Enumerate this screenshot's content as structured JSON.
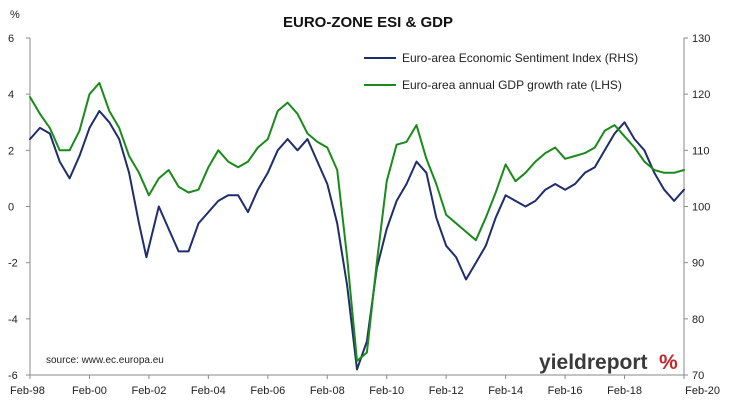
{
  "chart_data": {
    "type": "line",
    "title": "EURO-ZONE ESI & GDP",
    "left_axis_unit": "%",
    "ylim_left": [
      -6,
      6
    ],
    "ylim_right": [
      70,
      130
    ],
    "yticks_left": [
      6,
      4,
      2,
      0,
      -2,
      -4,
      -6
    ],
    "yticks_right": [
      130,
      120,
      110,
      100,
      90,
      80,
      70
    ],
    "xlim": [
      "1998-02",
      "2020-02"
    ],
    "xtick_labels": [
      "Feb-98",
      "Feb-00",
      "Feb-02",
      "Feb-04",
      "Feb-06",
      "Feb-08",
      "Feb-10",
      "Feb-12",
      "Feb-14",
      "Feb-16",
      "Feb-18",
      "Feb-20"
    ],
    "grid": false,
    "legend_position": "top-right",
    "source": "source: www.ec.europa.eu",
    "logo": {
      "text": "yieldreport",
      "symbol": "%"
    },
    "series": [
      {
        "name": "Euro-area Economic Sentiment Index (RHS)",
        "axis": "right",
        "color": "#1f2d6b",
        "points": [
          [
            "1998-02",
            112
          ],
          [
            "1998-06",
            114
          ],
          [
            "1998-10",
            113
          ],
          [
            "1999-02",
            108
          ],
          [
            "1999-06",
            105
          ],
          [
            "1999-10",
            109
          ],
          [
            "2000-02",
            114
          ],
          [
            "2000-06",
            117
          ],
          [
            "2000-10",
            115
          ],
          [
            "2001-02",
            112
          ],
          [
            "2001-06",
            106
          ],
          [
            "2001-10",
            97
          ],
          [
            "2002-01",
            91
          ],
          [
            "2002-06",
            100
          ],
          [
            "2002-10",
            96
          ],
          [
            "2003-02",
            92
          ],
          [
            "2003-06",
            92
          ],
          [
            "2003-10",
            97
          ],
          [
            "2004-02",
            99
          ],
          [
            "2004-06",
            101
          ],
          [
            "2004-10",
            102
          ],
          [
            "2005-02",
            102
          ],
          [
            "2005-06",
            99
          ],
          [
            "2005-10",
            103
          ],
          [
            "2006-02",
            106
          ],
          [
            "2006-06",
            110
          ],
          [
            "2006-10",
            112
          ],
          [
            "2007-02",
            110
          ],
          [
            "2007-06",
            112
          ],
          [
            "2007-10",
            108
          ],
          [
            "2008-02",
            104
          ],
          [
            "2008-06",
            97
          ],
          [
            "2008-10",
            86
          ],
          [
            "2009-02",
            71
          ],
          [
            "2009-06",
            76
          ],
          [
            "2009-10",
            89
          ],
          [
            "2010-02",
            96
          ],
          [
            "2010-06",
            101
          ],
          [
            "2010-10",
            104
          ],
          [
            "2011-02",
            108
          ],
          [
            "2011-06",
            106
          ],
          [
            "2011-10",
            98
          ],
          [
            "2012-02",
            93
          ],
          [
            "2012-06",
            91
          ],
          [
            "2012-10",
            87
          ],
          [
            "2013-02",
            90
          ],
          [
            "2013-06",
            93
          ],
          [
            "2013-10",
            98
          ],
          [
            "2014-02",
            102
          ],
          [
            "2014-06",
            101
          ],
          [
            "2014-10",
            100
          ],
          [
            "2015-02",
            101
          ],
          [
            "2015-06",
            103
          ],
          [
            "2015-10",
            104
          ],
          [
            "2016-02",
            103
          ],
          [
            "2016-06",
            104
          ],
          [
            "2016-10",
            106
          ],
          [
            "2017-02",
            107
          ],
          [
            "2017-06",
            110
          ],
          [
            "2017-10",
            113
          ],
          [
            "2018-02",
            115
          ],
          [
            "2018-06",
            112
          ],
          [
            "2018-10",
            110
          ],
          [
            "2019-02",
            106
          ],
          [
            "2019-06",
            103
          ],
          [
            "2019-10",
            101
          ],
          [
            "2020-02",
            103
          ]
        ]
      },
      {
        "name": "Euro-area annual GDP growth rate (LHS)",
        "axis": "left",
        "color": "#1a8a1a",
        "points": [
          [
            "1998-02",
            3.9
          ],
          [
            "1998-06",
            3.3
          ],
          [
            "1998-10",
            2.8
          ],
          [
            "1999-02",
            2.0
          ],
          [
            "1999-06",
            2.0
          ],
          [
            "1999-10",
            2.7
          ],
          [
            "2000-02",
            4.0
          ],
          [
            "2000-06",
            4.4
          ],
          [
            "2000-10",
            3.4
          ],
          [
            "2001-02",
            2.8
          ],
          [
            "2001-06",
            1.8
          ],
          [
            "2001-10",
            1.2
          ],
          [
            "2002-02",
            0.4
          ],
          [
            "2002-06",
            1.0
          ],
          [
            "2002-10",
            1.3
          ],
          [
            "2003-02",
            0.7
          ],
          [
            "2003-06",
            0.5
          ],
          [
            "2003-10",
            0.6
          ],
          [
            "2004-02",
            1.4
          ],
          [
            "2004-06",
            2.0
          ],
          [
            "2004-10",
            1.6
          ],
          [
            "2005-02",
            1.4
          ],
          [
            "2005-06",
            1.6
          ],
          [
            "2005-10",
            2.1
          ],
          [
            "2006-02",
            2.4
          ],
          [
            "2006-06",
            3.4
          ],
          [
            "2006-10",
            3.7
          ],
          [
            "2007-02",
            3.3
          ],
          [
            "2007-06",
            2.6
          ],
          [
            "2007-10",
            2.3
          ],
          [
            "2008-02",
            2.1
          ],
          [
            "2008-06",
            1.3
          ],
          [
            "2008-10",
            -1.8
          ],
          [
            "2009-02",
            -5.5
          ],
          [
            "2009-06",
            -5.2
          ],
          [
            "2009-10",
            -2.0
          ],
          [
            "2010-02",
            0.9
          ],
          [
            "2010-06",
            2.2
          ],
          [
            "2010-10",
            2.3
          ],
          [
            "2011-02",
            2.9
          ],
          [
            "2011-06",
            1.7
          ],
          [
            "2011-10",
            0.8
          ],
          [
            "2012-02",
            -0.3
          ],
          [
            "2012-06",
            -0.6
          ],
          [
            "2012-10",
            -0.9
          ],
          [
            "2013-02",
            -1.2
          ],
          [
            "2013-06",
            -0.4
          ],
          [
            "2013-10",
            0.5
          ],
          [
            "2014-02",
            1.5
          ],
          [
            "2014-06",
            0.9
          ],
          [
            "2014-10",
            1.2
          ],
          [
            "2015-02",
            1.6
          ],
          [
            "2015-06",
            1.9
          ],
          [
            "2015-10",
            2.1
          ],
          [
            "2016-02",
            1.7
          ],
          [
            "2016-06",
            1.8
          ],
          [
            "2016-10",
            1.9
          ],
          [
            "2017-02",
            2.1
          ],
          [
            "2017-06",
            2.7
          ],
          [
            "2017-10",
            2.9
          ],
          [
            "2018-02",
            2.5
          ],
          [
            "2018-06",
            2.1
          ],
          [
            "2018-10",
            1.6
          ],
          [
            "2019-02",
            1.3
          ],
          [
            "2019-06",
            1.2
          ],
          [
            "2019-10",
            1.2
          ],
          [
            "2020-02",
            1.3
          ]
        ]
      }
    ]
  }
}
